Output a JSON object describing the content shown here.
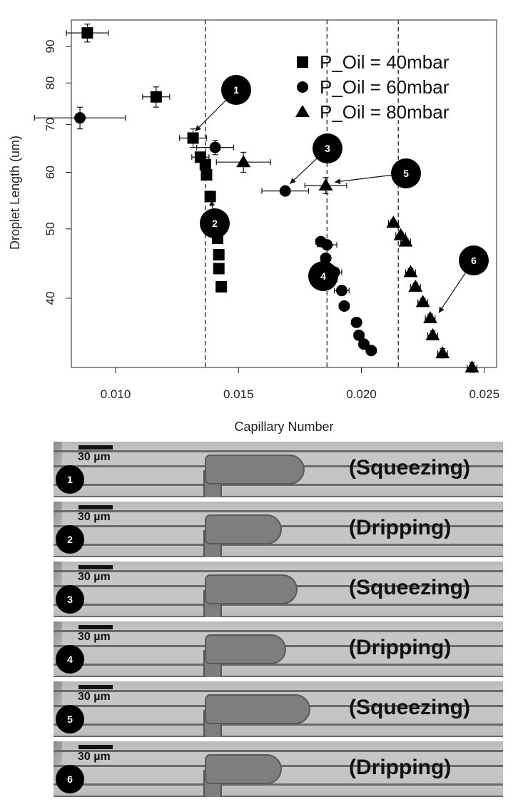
{
  "chart_data": {
    "type": "scatter",
    "xlabel": "Capillary Number",
    "ylabel": "Droplet Length (um)",
    "xlim": [
      0.0082,
      0.0255
    ],
    "ylim": [
      32,
      98
    ],
    "log_y": true,
    "grid": false,
    "legend_position": "top-right",
    "x_ticks": [
      0.01,
      0.015,
      0.02,
      0.025
    ],
    "x_tick_labels": [
      "0.010",
      "0.015",
      "0.020",
      "0.025"
    ],
    "y_ticks": [
      40,
      50,
      60,
      70,
      80,
      90
    ],
    "y_tick_labels": [
      "40",
      "50",
      "60",
      "70",
      "80",
      "90"
    ],
    "vlines": [
      0.01365,
      0.0186,
      0.0215
    ],
    "series": [
      {
        "name": "P_Oil = 40mbar",
        "marker": "square",
        "points": [
          {
            "x": 0.00885,
            "y": 94,
            "xerr": 0.00085,
            "yerr": 2.7
          },
          {
            "x": 0.01165,
            "y": 76.5,
            "xerr": 0.00055,
            "yerr": 2.5
          },
          {
            "x": 0.01315,
            "y": 67,
            "xerr": 0.00055,
            "yerr": 2.0
          },
          {
            "x": 0.01345,
            "y": 63,
            "xerr": 0.00035,
            "yerr": 0.5
          },
          {
            "x": 0.01365,
            "y": 61.5,
            "xerr": 0.0002,
            "yerr": 0.5
          },
          {
            "x": 0.0137,
            "y": 59.5,
            "xerr": 0.0002,
            "yerr": 0.5
          },
          {
            "x": 0.01385,
            "y": 55.5,
            "xerr": 0.0002,
            "yerr": 0.5
          },
          {
            "x": 0.014,
            "y": 52,
            "xerr": 0.0002,
            "yerr": 0.5
          },
          {
            "x": 0.01415,
            "y": 48.5,
            "xerr": 0.0002,
            "yerr": 0.5
          },
          {
            "x": 0.0142,
            "y": 46,
            "xerr": 0.0002,
            "yerr": 0.5
          },
          {
            "x": 0.0142,
            "y": 44,
            "xerr": 0.0002,
            "yerr": 0.5
          },
          {
            "x": 0.0143,
            "y": 41.5,
            "xerr": 0.0002,
            "yerr": 0.5
          }
        ]
      },
      {
        "name": "P_Oil = 60mbar",
        "marker": "circle",
        "points": [
          {
            "x": 0.00855,
            "y": 71.5,
            "xerr": 0.00185,
            "yerr": 2.5
          },
          {
            "x": 0.01405,
            "y": 65,
            "xerr": 0.00075,
            "yerr": 1.5
          },
          {
            "x": 0.0169,
            "y": 56.5,
            "xerr": 0.00095,
            "yerr": 0.8
          },
          {
            "x": 0.01835,
            "y": 48,
            "xerr": 0.0002,
            "yerr": 0.5
          },
          {
            "x": 0.0186,
            "y": 47.5,
            "xerr": 0.0004,
            "yerr": 0.5
          },
          {
            "x": 0.01855,
            "y": 45.5,
            "xerr": 0.0002,
            "yerr": 0.5
          },
          {
            "x": 0.0189,
            "y": 43.5,
            "xerr": 0.0003,
            "yerr": 0.5
          },
          {
            "x": 0.0192,
            "y": 41,
            "xerr": 0.0003,
            "yerr": 0.5
          },
          {
            "x": 0.0193,
            "y": 39,
            "xerr": 0.0002,
            "yerr": 0.5
          },
          {
            "x": 0.0198,
            "y": 37,
            "xerr": 0.0002,
            "yerr": 0.5
          },
          {
            "x": 0.0199,
            "y": 35.5,
            "xerr": 0.0002,
            "yerr": 0.5
          },
          {
            "x": 0.0201,
            "y": 34.5,
            "xerr": 0.0002,
            "yerr": 0.5
          },
          {
            "x": 0.0204,
            "y": 33.8,
            "xerr": 0.0002,
            "yerr": 0.5
          }
        ]
      },
      {
        "name": "P_Oil = 80mbar",
        "marker": "triangle",
        "points": [
          {
            "x": 0.0152,
            "y": 62,
            "xerr": 0.0011,
            "yerr": 2.0
          },
          {
            "x": 0.01855,
            "y": 57.5,
            "xerr": 0.00085,
            "yerr": 1.5
          },
          {
            "x": 0.0213,
            "y": 51,
            "xerr": 0.0002,
            "yerr": 0.5
          },
          {
            "x": 0.0216,
            "y": 49,
            "xerr": 0.0002,
            "yerr": 0.5
          },
          {
            "x": 0.0218,
            "y": 48,
            "xerr": 0.0002,
            "yerr": 0.5
          },
          {
            "x": 0.022,
            "y": 43.5,
            "xerr": 0.0002,
            "yerr": 0.5
          },
          {
            "x": 0.0222,
            "y": 41.5,
            "xerr": 0.0002,
            "yerr": 0.5
          },
          {
            "x": 0.0225,
            "y": 39.5,
            "xerr": 0.0002,
            "yerr": 0.5
          },
          {
            "x": 0.0228,
            "y": 37.5,
            "xerr": 0.0002,
            "yerr": 0.5
          },
          {
            "x": 0.0229,
            "y": 35.5,
            "xerr": 0.0002,
            "yerr": 0.5
          },
          {
            "x": 0.0233,
            "y": 33.5,
            "xerr": 0.0002,
            "yerr": 0.5
          },
          {
            "x": 0.0245,
            "y": 32,
            "xerr": 0.0002,
            "yerr": 0.5
          }
        ]
      }
    ],
    "callouts": [
      {
        "label": "1",
        "target": {
          "x": 0.01305,
          "y": 67.5
        }
      },
      {
        "label": "2",
        "target": {
          "x": 0.01385,
          "y": 56
        }
      },
      {
        "label": "3",
        "target": {
          "x": 0.0169,
          "y": 57
        }
      },
      {
        "label": "4",
        "target": {
          "x": 0.0184,
          "y": 45.5
        }
      },
      {
        "label": "5",
        "target": {
          "x": 0.01865,
          "y": 58
        }
      },
      {
        "label": "6",
        "target": {
          "x": 0.023,
          "y": 37.5
        }
      }
    ]
  },
  "panels": [
    {
      "number": "1",
      "scale": "30 µm",
      "regime": "(Squeezing)",
      "droplet_length": 0.68
    },
    {
      "number": "2",
      "scale": "30 µm",
      "regime": "(Dripping)",
      "droplet_length": 0.52
    },
    {
      "number": "3",
      "scale": "30 µm",
      "regime": "(Squeezing)",
      "droplet_length": 0.63
    },
    {
      "number": "4",
      "scale": "30 µm",
      "regime": "(Dripping)",
      "droplet_length": 0.55
    },
    {
      "number": "5",
      "scale": "30 µm",
      "regime": "(Squeezing)",
      "droplet_length": 0.72
    },
    {
      "number": "6",
      "scale": "30 µm",
      "regime": "(Dripping)",
      "droplet_length": 0.52
    }
  ]
}
